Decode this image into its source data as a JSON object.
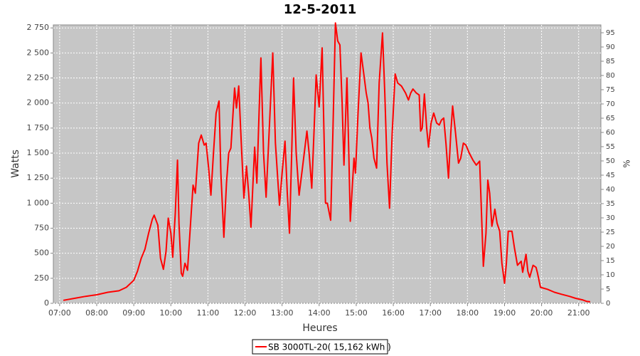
{
  "chart_data": {
    "type": "line",
    "title": "12-5-2011",
    "x_label": "Heures",
    "y_label": "Watts",
    "y2_label": "%",
    "x": [
      7.1,
      7.4,
      7.7,
      8.0,
      8.3,
      8.6,
      8.8,
      9.0,
      9.1,
      9.2,
      9.3,
      9.4,
      9.5,
      9.55,
      9.65,
      9.72,
      9.8,
      9.87,
      9.93,
      10.0,
      10.05,
      10.12,
      10.18,
      10.22,
      10.28,
      10.32,
      10.38,
      10.45,
      10.55,
      10.6,
      10.66,
      10.75,
      10.82,
      10.9,
      10.95,
      11.02,
      11.08,
      11.15,
      11.22,
      11.3,
      11.35,
      11.43,
      11.5,
      11.56,
      11.62,
      11.72,
      11.77,
      11.83,
      11.9,
      11.97,
      12.04,
      12.1,
      12.16,
      12.26,
      12.32,
      12.38,
      12.43,
      12.5,
      12.57,
      12.65,
      12.75,
      12.82,
      12.93,
      13.0,
      13.08,
      13.14,
      13.2,
      13.26,
      13.31,
      13.38,
      13.46,
      13.55,
      13.67,
      13.73,
      13.8,
      13.86,
      13.92,
      14.0,
      14.08,
      14.13,
      14.17,
      14.22,
      14.31,
      14.37,
      14.44,
      14.5,
      14.56,
      14.62,
      14.67,
      14.75,
      14.8,
      14.84,
      14.9,
      14.94,
      14.98,
      15.05,
      15.13,
      15.2,
      15.27,
      15.32,
      15.37,
      15.42,
      15.48,
      15.55,
      15.62,
      15.71,
      15.77,
      15.83,
      15.9,
      15.97,
      16.05,
      16.12,
      16.22,
      16.33,
      16.41,
      16.47,
      16.53,
      16.62,
      16.7,
      16.74,
      16.78,
      16.84,
      16.9,
      16.95,
      17.02,
      17.09,
      17.17,
      17.24,
      17.3,
      17.36,
      17.42,
      17.49,
      17.55,
      17.6,
      17.68,
      17.76,
      17.82,
      17.89,
      17.96,
      18.05,
      18.15,
      18.24,
      18.33,
      18.38,
      18.43,
      18.5,
      18.55,
      18.6,
      18.66,
      18.7,
      18.74,
      18.8,
      18.87,
      18.93,
      19.0,
      19.05,
      19.1,
      19.2,
      19.27,
      19.35,
      19.45,
      19.49,
      19.58,
      19.63,
      19.68,
      19.77,
      19.85,
      19.89,
      19.97,
      20.16,
      20.35,
      20.54,
      20.75,
      20.92,
      21.1,
      21.21,
      21.31
    ],
    "series": [
      {
        "name": "SB 3000TL-20( 15,162 kWh )",
        "color": "#ff0000",
        "values": [
          30,
          50,
          70,
          85,
          110,
          125,
          160,
          230,
          320,
          450,
          540,
          700,
          840,
          880,
          780,
          450,
          340,
          520,
          850,
          700,
          460,
          900,
          1430,
          800,
          300,
          270,
          400,
          330,
          900,
          1180,
          1100,
          1600,
          1680,
          1580,
          1600,
          1350,
          1080,
          1500,
          1900,
          2020,
          1300,
          660,
          1200,
          1500,
          1550,
          2150,
          1950,
          2170,
          1600,
          1050,
          1370,
          1100,
          760,
          1560,
          1200,
          1900,
          2450,
          1500,
          1060,
          1700,
          2500,
          1600,
          980,
          1300,
          1620,
          1100,
          700,
          1500,
          2250,
          1500,
          1080,
          1350,
          1720,
          1500,
          1150,
          1700,
          2280,
          1960,
          2550,
          1700,
          1000,
          1000,
          830,
          1700,
          2800,
          2620,
          2580,
          2000,
          1380,
          2250,
          1500,
          820,
          1200,
          1450,
          1300,
          1900,
          2500,
          2300,
          2100,
          2000,
          1750,
          1650,
          1450,
          1350,
          2200,
          2700,
          2100,
          1400,
          950,
          1700,
          2290,
          2200,
          2170,
          2100,
          2030,
          2100,
          2140,
          2100,
          2080,
          1720,
          1750,
          2090,
          1750,
          1560,
          1800,
          1900,
          1800,
          1780,
          1830,
          1850,
          1600,
          1250,
          1700,
          1970,
          1700,
          1400,
          1450,
          1600,
          1580,
          1500,
          1430,
          1380,
          1420,
          900,
          370,
          700,
          1230,
          1100,
          770,
          850,
          940,
          800,
          720,
          400,
          200,
          400,
          720,
          720,
          550,
          380,
          420,
          310,
          490,
          320,
          260,
          380,
          360,
          300,
          160,
          140,
          110,
          90,
          70,
          50,
          35,
          20,
          15
        ]
      }
    ],
    "xlim": [
      6.83,
      21.6
    ],
    "xticks": [
      {
        "value": 7,
        "label": "07:00"
      },
      {
        "value": 8,
        "label": "08:00"
      },
      {
        "value": 9,
        "label": "09:00"
      },
      {
        "value": 10,
        "label": "10:00"
      },
      {
        "value": 11,
        "label": "11:00"
      },
      {
        "value": 12,
        "label": "12:00"
      },
      {
        "value": 13,
        "label": "13:00"
      },
      {
        "value": 14,
        "label": "14:00"
      },
      {
        "value": 15,
        "label": "15:00"
      },
      {
        "value": 16,
        "label": "16:00"
      },
      {
        "value": 17,
        "label": "17:00"
      },
      {
        "value": 18,
        "label": "18:00"
      },
      {
        "value": 19,
        "label": "19:00"
      },
      {
        "value": 20,
        "label": "20:00"
      },
      {
        "value": 21,
        "label": "21:00"
      }
    ],
    "ylim": [
      0,
      2780
    ],
    "yticks": [
      0,
      250,
      500,
      750,
      {
        "value": 1000,
        "label": "1 000"
      },
      {
        "value": 1250,
        "label": "1 250"
      },
      {
        "value": 1500,
        "label": "1 500"
      },
      {
        "value": 1750,
        "label": "1 750"
      },
      {
        "value": 2000,
        "label": "2 000"
      },
      {
        "value": 2250,
        "label": "2 250"
      },
      {
        "value": 2500,
        "label": "2 500"
      },
      {
        "value": 2750,
        "label": "2 750"
      }
    ],
    "y2lim": [
      0,
      97.75
    ],
    "y2ticks": [
      0,
      5,
      10,
      15,
      20,
      25,
      30,
      35,
      40,
      45,
      50,
      55,
      60,
      65,
      70,
      75,
      80,
      85,
      90,
      95
    ],
    "grid": true
  }
}
